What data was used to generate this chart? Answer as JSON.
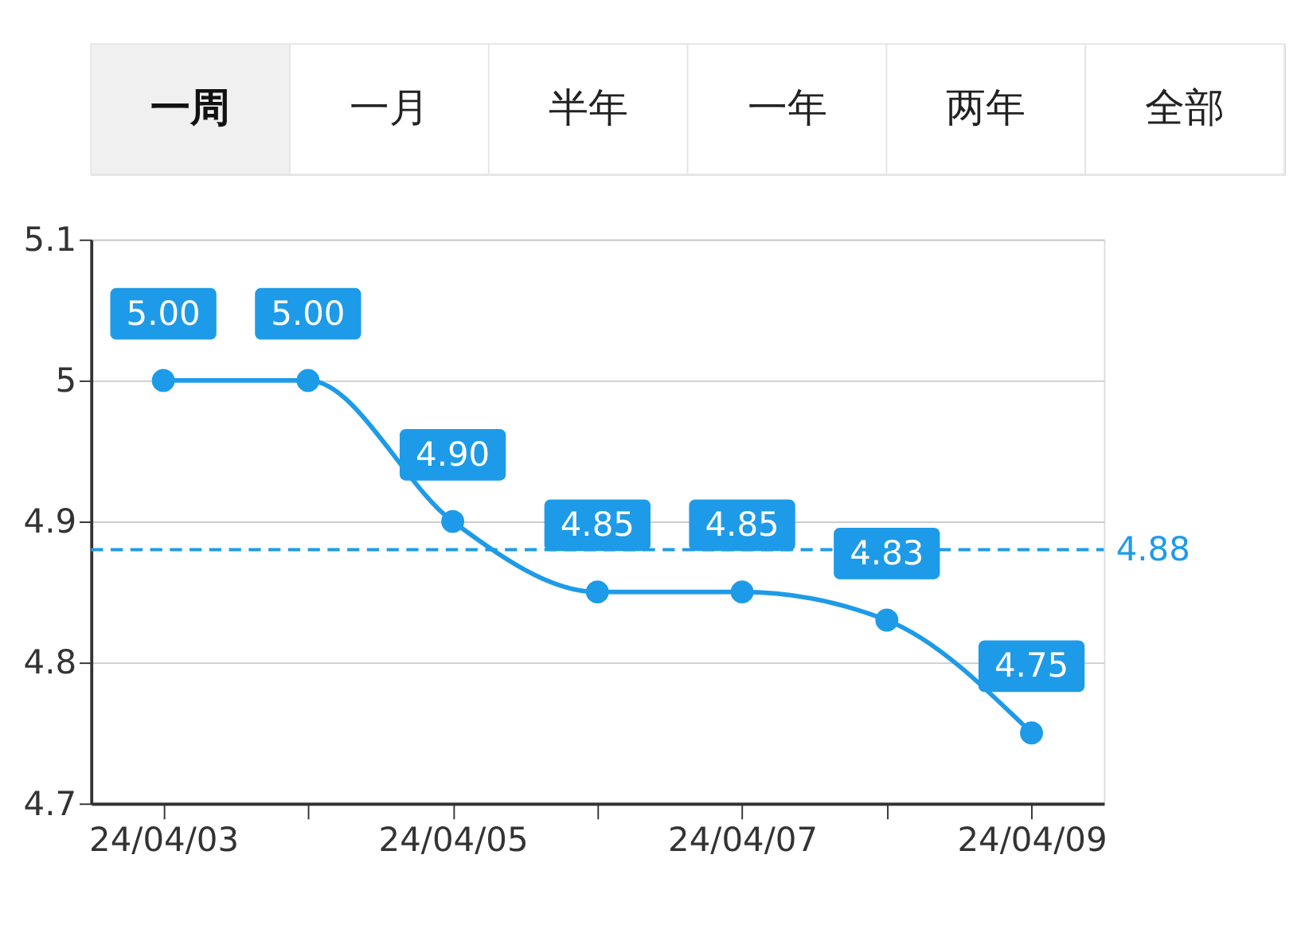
{
  "chart_data": {
    "type": "line",
    "annotations": [
      "一周",
      "一月",
      "半年",
      "一年",
      "两年",
      "全部"
    ],
    "categories": [
      "24/04/03",
      null,
      "24/04/05",
      null,
      "24/04/07",
      null,
      "24/04/09"
    ],
    "series": [
      {
        "color": "#1e9be8",
        "values": [
          5.0,
          5.0,
          4.9,
          4.85,
          4.85,
          4.83,
          4.75
        ],
        "value_labels": [
          "5.00",
          "5.00",
          "4.90",
          "4.85",
          "4.85",
          "4.83",
          "4.75"
        ]
      }
    ],
    "ylim": [
      4.7,
      5.1
    ],
    "yticks": [
      4.7,
      4.8,
      4.9,
      5,
      5.1
    ],
    "ref_lines": [
      {
        "axis": "y",
        "value": 4.88,
        "label": "4.88",
        "color": "#1e9be8",
        "line_style": "dashed"
      }
    ],
    "grid": "y",
    "marker": "circle",
    "line_style": "solid"
  }
}
